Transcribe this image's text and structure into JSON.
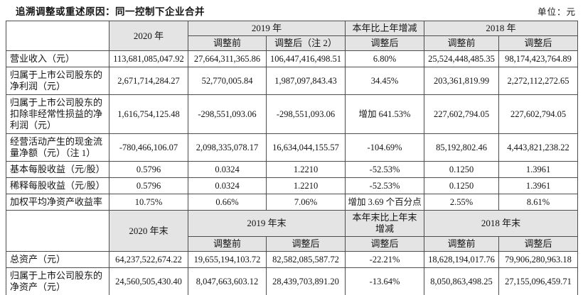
{
  "page": {
    "title": "追溯调整或重述原因：同一控制下企业合并",
    "unit": "单位：元"
  },
  "table_annual": {
    "years_header": [
      "2020 年",
      "2019 年",
      "本年比上年增减",
      "2018 年"
    ],
    "sub_header": [
      "调整前",
      "调整后（注 2）",
      "调整后",
      "调整前",
      "调整后"
    ],
    "rows": [
      {
        "label": "营业收入（元）",
        "values": [
          "113,681,085,047.92",
          "27,664,311,365.86",
          "106,447,416,498.51",
          "6.80%",
          "25,524,448,485.35",
          "98,174,423,764.89"
        ]
      },
      {
        "label": "归属于上市公司股东的净利润（元）",
        "values": [
          "2,671,714,284.27",
          "52,770,005.84",
          "1,987,097,843.43",
          "34.45%",
          "203,361,819.99",
          "2,272,112,272.65"
        ]
      },
      {
        "label": "归属于上市公司股东的扣除非经常性损益的净利润（元）",
        "values": [
          "1,616,754,125.48",
          "-298,551,093.06",
          "-298,551,093.06",
          "增加 641.53%",
          "227,602,794.05",
          "227,602,794.05"
        ]
      },
      {
        "label": "经营活动产生的现金流量净额（元）（注 1）",
        "values": [
          "-780,466,106.07",
          "2,098,335,078.17",
          "16,634,044,155.57",
          "-104.69%",
          "85,192,802.46",
          "4,443,821,238.22"
        ]
      },
      {
        "label": "基本每股收益（元/股）",
        "values": [
          "0.5796",
          "0.0324",
          "1.2210",
          "-52.53%",
          "0.1250",
          "1.3961"
        ]
      },
      {
        "label": "稀释每股收益（元/股）",
        "values": [
          "0.5796",
          "0.0324",
          "1.2210",
          "-52.53%",
          "0.1250",
          "1.3961"
        ]
      },
      {
        "label": "加权平均净资产收益率",
        "values": [
          "10.75%",
          "0.66%",
          "7.06%",
          "增加 3.69 个百分点",
          "2.55%",
          "8.61%"
        ]
      }
    ]
  },
  "table_year_end": {
    "years_header": [
      "2020 年末",
      "2019 年末",
      "本年末比上年末增减",
      "2018 年末"
    ],
    "sub_header": [
      "调整前",
      "调整后",
      "调整后",
      "调整前",
      "调整后"
    ],
    "rows": [
      {
        "label": "总资产（元）",
        "values": [
          "64,237,522,674.22",
          "19,655,194,103.72",
          "82,582,085,587.72",
          "-22.21%",
          "18,628,194,017.76",
          "79,906,280,963.18"
        ]
      },
      {
        "label": "归属于上市公司股东的净资产（元）",
        "values": [
          "24,560,505,430.40",
          "8,047,663,603.12",
          "28,439,703,891.20",
          "-13.64%",
          "8,050,863,498.25",
          "27,155,096,459.71"
        ]
      }
    ]
  }
}
